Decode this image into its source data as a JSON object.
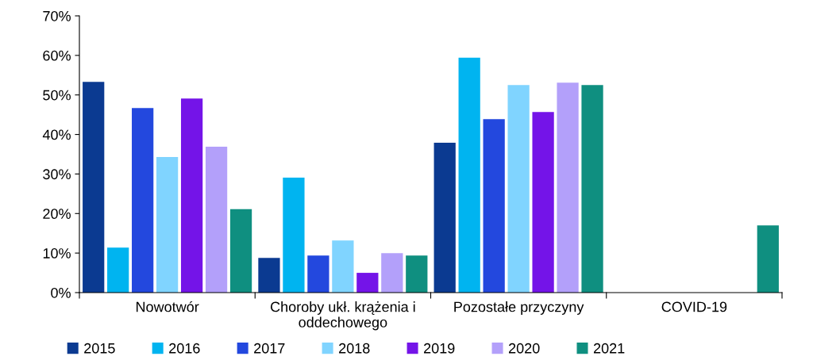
{
  "chart_data": {
    "type": "bar",
    "categories": [
      "Nowotwór",
      "Choroby ukł. krążenia i\noddechowego",
      "Pozostałe przyczyny",
      "COVID-19"
    ],
    "series": [
      {
        "name": "2015",
        "color": "#0b3a91",
        "values": [
          53.3,
          8.8,
          37.9,
          0
        ]
      },
      {
        "name": "2016",
        "color": "#00b4f0",
        "values": [
          11.4,
          29.1,
          59.4,
          0
        ]
      },
      {
        "name": "2017",
        "color": "#2348de",
        "values": [
          46.7,
          9.4,
          43.9,
          0
        ]
      },
      {
        "name": "2018",
        "color": "#80d4ff",
        "values": [
          34.3,
          13.2,
          52.5,
          0
        ]
      },
      {
        "name": "2019",
        "color": "#7414e8",
        "values": [
          49.1,
          5.0,
          45.7,
          0
        ]
      },
      {
        "name": "2020",
        "color": "#b3a0fa",
        "values": [
          36.9,
          10.0,
          53.1,
          0
        ]
      },
      {
        "name": "2021",
        "color": "#0f8f80",
        "values": [
          21.1,
          9.4,
          52.5,
          17.0
        ]
      }
    ],
    "ylim": [
      0,
      70
    ],
    "yticks": [
      {
        "value": 0,
        "label": "0%"
      },
      {
        "value": 10,
        "label": "10%"
      },
      {
        "value": 20,
        "label": "20%"
      },
      {
        "value": 30,
        "label": "30%"
      },
      {
        "value": 40,
        "label": "40%"
      },
      {
        "value": 50,
        "label": "50%"
      },
      {
        "value": 60,
        "label": "60%"
      },
      {
        "value": 70,
        "label": "70%"
      }
    ],
    "grid": false,
    "legend": "bottom"
  }
}
